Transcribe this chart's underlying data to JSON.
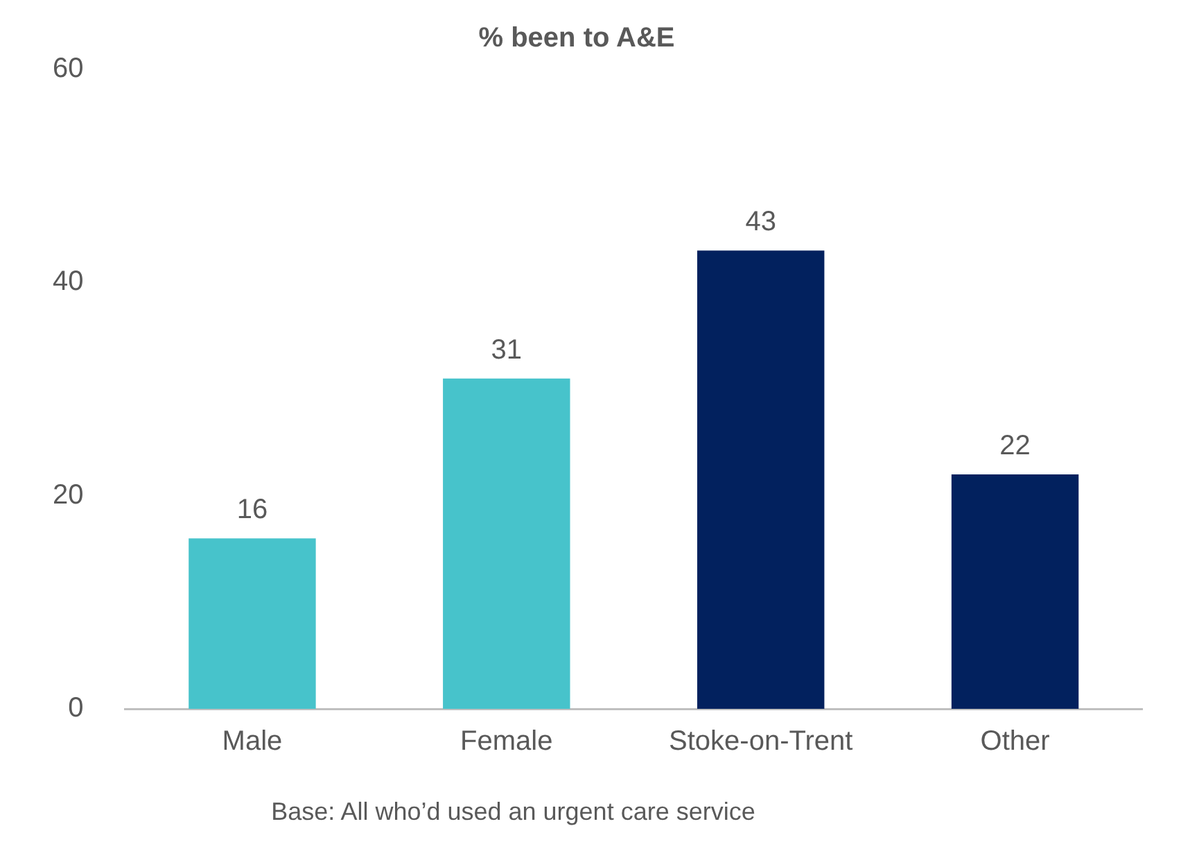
{
  "chart_data": {
    "type": "bar",
    "title": "% been to A&E",
    "categories": [
      "Male",
      "Female",
      "Stoke-on-Trent",
      "Other"
    ],
    "values": [
      16,
      31,
      43,
      22
    ],
    "colors": [
      "#47c3cb",
      "#47c3cb",
      "#02215e",
      "#02215e"
    ],
    "ylim": [
      0,
      60
    ],
    "yticks": [
      0,
      20,
      40,
      60
    ],
    "grid": false,
    "data_labels": true,
    "legend": false,
    "annotations": [
      "Base: All who’d used an urgent care service"
    ]
  }
}
